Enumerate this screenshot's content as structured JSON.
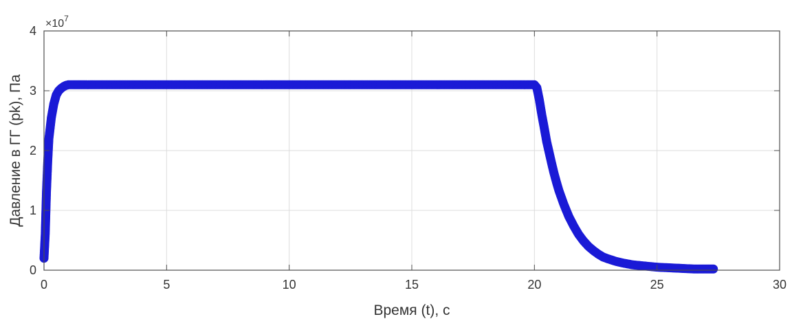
{
  "chart_data": {
    "type": "scatter",
    "xlabel": "Время (t), с",
    "ylabel": "Давление в ГГ (pk), Па",
    "y_multiplier_label": "×10",
    "y_multiplier_exponent": "7",
    "xlim": [
      0,
      30
    ],
    "ylim": [
      0,
      4
    ],
    "xticks": [
      0,
      5,
      10,
      15,
      20,
      25,
      30
    ],
    "yticks": [
      0,
      1,
      2,
      3,
      4
    ],
    "grid": true,
    "colors": {
      "series": "#1a1ad6",
      "grid": "#dcdcdc",
      "axes": "#4d4d4d"
    },
    "series": [
      {
        "points": [
          [
            0.0,
            0.2
          ],
          [
            0.05,
            0.6
          ],
          [
            0.1,
            1.3
          ],
          [
            0.15,
            1.8
          ],
          [
            0.2,
            2.2
          ],
          [
            0.3,
            2.55
          ],
          [
            0.4,
            2.78
          ],
          [
            0.5,
            2.93
          ],
          [
            0.6,
            3.0
          ],
          [
            0.7,
            3.04
          ],
          [
            0.8,
            3.07
          ],
          [
            0.9,
            3.09
          ],
          [
            1.0,
            3.1
          ],
          [
            1.2,
            3.1
          ],
          [
            1.5,
            3.1
          ],
          [
            2.0,
            3.1
          ],
          [
            3.0,
            3.1
          ],
          [
            4.0,
            3.1
          ],
          [
            5.0,
            3.1
          ],
          [
            6.0,
            3.1
          ],
          [
            7.0,
            3.1
          ],
          [
            8.0,
            3.1
          ],
          [
            9.0,
            3.1
          ],
          [
            10.0,
            3.1
          ],
          [
            11.0,
            3.1
          ],
          [
            12.0,
            3.1
          ],
          [
            13.0,
            3.1
          ],
          [
            14.0,
            3.1
          ],
          [
            15.0,
            3.1
          ],
          [
            16.0,
            3.1
          ],
          [
            17.0,
            3.1
          ],
          [
            18.0,
            3.1
          ],
          [
            19.0,
            3.1
          ],
          [
            19.5,
            3.1
          ],
          [
            19.8,
            3.1
          ],
          [
            20.0,
            3.1
          ],
          [
            20.1,
            3.05
          ],
          [
            20.2,
            2.85
          ],
          [
            20.3,
            2.6
          ],
          [
            20.4,
            2.38
          ],
          [
            20.5,
            2.15
          ],
          [
            20.6,
            1.97
          ],
          [
            20.7,
            1.79
          ],
          [
            20.8,
            1.62
          ],
          [
            20.9,
            1.47
          ],
          [
            21.0,
            1.33
          ],
          [
            21.2,
            1.1
          ],
          [
            21.4,
            0.9
          ],
          [
            21.6,
            0.74
          ],
          [
            21.8,
            0.6
          ],
          [
            22.0,
            0.49
          ],
          [
            22.2,
            0.4
          ],
          [
            22.4,
            0.33
          ],
          [
            22.6,
            0.27
          ],
          [
            22.8,
            0.22
          ],
          [
            23.0,
            0.19
          ],
          [
            23.3,
            0.15
          ],
          [
            23.6,
            0.12
          ],
          [
            24.0,
            0.09
          ],
          [
            24.5,
            0.07
          ],
          [
            25.0,
            0.05
          ],
          [
            25.5,
            0.04
          ],
          [
            26.0,
            0.03
          ],
          [
            26.5,
            0.02
          ],
          [
            27.0,
            0.02
          ],
          [
            27.3,
            0.02
          ]
        ]
      }
    ]
  }
}
